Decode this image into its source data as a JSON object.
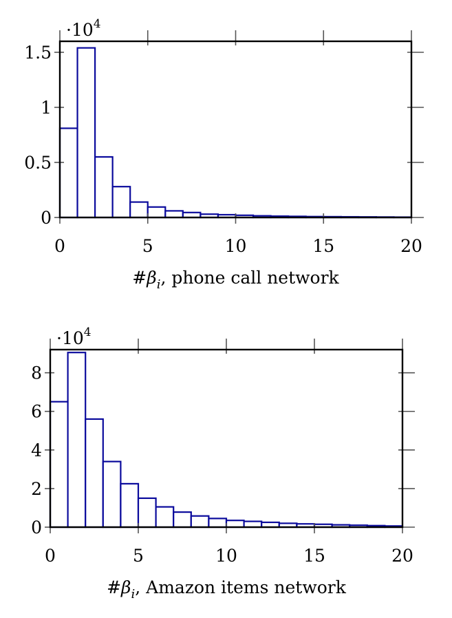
{
  "chart_data": [
    {
      "type": "bar",
      "title": "",
      "xlabel_prefix": "#",
      "xlabel_symbol": "β",
      "xlabel_subscript": "i",
      "xlabel_rest": ", phone call network",
      "ylabel": "",
      "scale_prefix": "·10",
      "scale_exponent": "4",
      "bin_width": 1,
      "x_start": 0,
      "xlim": [
        0,
        20
      ],
      "ylim": [
        0,
        1.6
      ],
      "xticks": [
        0,
        5,
        10,
        15,
        20
      ],
      "yticks": [
        0,
        0.5,
        1,
        1.5
      ],
      "xtick_labels": [
        "0",
        "5",
        "10",
        "15",
        "20"
      ],
      "ytick_labels": [
        "0",
        "0.5",
        "1",
        "1.5"
      ],
      "values": [
        0.81,
        1.54,
        0.55,
        0.28,
        0.14,
        0.095,
        0.06,
        0.045,
        0.03,
        0.025,
        0.02,
        0.015,
        0.012,
        0.01,
        0.008,
        0.007,
        0.006,
        0.005,
        0.004,
        0.003
      ],
      "grid": false,
      "bar_color": "#0a0a9c"
    },
    {
      "type": "bar",
      "title": "",
      "xlabel_prefix": "#",
      "xlabel_symbol": "β",
      "xlabel_subscript": "i",
      "xlabel_rest": ", Amazon items network",
      "ylabel": "",
      "scale_prefix": "·10",
      "scale_exponent": "4",
      "bin_width": 1,
      "x_start": 0,
      "xlim": [
        0,
        20
      ],
      "ylim": [
        0,
        9.2
      ],
      "xticks": [
        0,
        5,
        10,
        15,
        20
      ],
      "yticks": [
        0,
        2,
        4,
        6,
        8
      ],
      "xtick_labels": [
        "0",
        "5",
        "10",
        "15",
        "20"
      ],
      "ytick_labels": [
        "0",
        "2",
        "4",
        "6",
        "8"
      ],
      "values": [
        6.5,
        9.05,
        5.6,
        3.4,
        2.25,
        1.5,
        1.05,
        0.78,
        0.58,
        0.45,
        0.35,
        0.3,
        0.25,
        0.2,
        0.17,
        0.15,
        0.12,
        0.1,
        0.08,
        0.06
      ],
      "grid": false,
      "bar_color": "#0a0a9c"
    }
  ]
}
